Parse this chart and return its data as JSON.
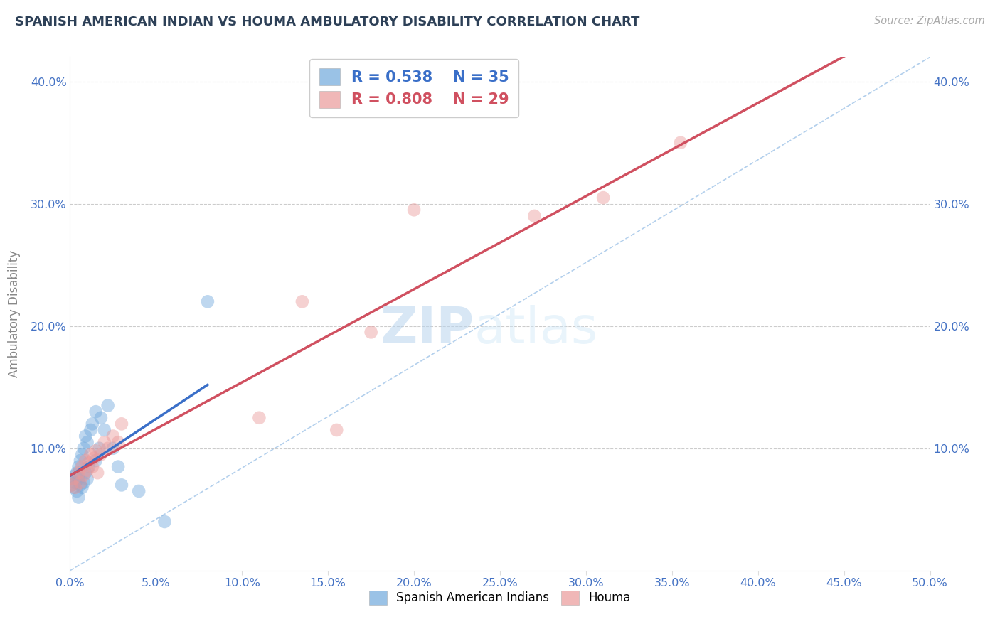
{
  "title": "SPANISH AMERICAN INDIAN VS HOUMA AMBULATORY DISABILITY CORRELATION CHART",
  "source": "Source: ZipAtlas.com",
  "ylabel": "Ambulatory Disability",
  "xlim": [
    0.0,
    0.5
  ],
  "ylim": [
    0.0,
    0.42
  ],
  "xtick_labels": [
    "0.0%",
    "5.0%",
    "10.0%",
    "15.0%",
    "20.0%",
    "25.0%",
    "30.0%",
    "35.0%",
    "40.0%",
    "45.0%",
    "50.0%"
  ],
  "xtick_vals": [
    0.0,
    0.05,
    0.1,
    0.15,
    0.2,
    0.25,
    0.3,
    0.35,
    0.4,
    0.45,
    0.5
  ],
  "ytick_labels": [
    "10.0%",
    "20.0%",
    "30.0%",
    "40.0%"
  ],
  "ytick_vals": [
    0.1,
    0.2,
    0.3,
    0.4
  ],
  "legend_r_blue": "R = 0.538",
  "legend_n_blue": "N = 35",
  "legend_r_pink": "R = 0.808",
  "legend_n_pink": "N = 29",
  "legend_label_blue": "Spanish American Indians",
  "legend_label_pink": "Houma",
  "color_blue": "#6fa8dc",
  "color_pink": "#ea9999",
  "color_blue_line": "#3a6fc8",
  "color_pink_line": "#d05060",
  "color_diag": "#a0c4e8",
  "watermark_zip": "ZIP",
  "watermark_atlas": "atlas",
  "blue_scatter_x": [
    0.0,
    0.001,
    0.002,
    0.003,
    0.003,
    0.004,
    0.004,
    0.005,
    0.005,
    0.005,
    0.006,
    0.006,
    0.007,
    0.007,
    0.008,
    0.008,
    0.009,
    0.009,
    0.01,
    0.01,
    0.011,
    0.012,
    0.013,
    0.015,
    0.015,
    0.017,
    0.018,
    0.02,
    0.022,
    0.025,
    0.028,
    0.03,
    0.04,
    0.055,
    0.08
  ],
  "blue_scatter_y": [
    0.075,
    0.07,
    0.068,
    0.072,
    0.078,
    0.065,
    0.08,
    0.06,
    0.075,
    0.085,
    0.07,
    0.09,
    0.068,
    0.095,
    0.072,
    0.1,
    0.08,
    0.11,
    0.075,
    0.105,
    0.085,
    0.115,
    0.12,
    0.09,
    0.13,
    0.1,
    0.125,
    0.115,
    0.135,
    0.1,
    0.085,
    0.07,
    0.065,
    0.04,
    0.22
  ],
  "pink_scatter_x": [
    0.001,
    0.002,
    0.003,
    0.005,
    0.006,
    0.007,
    0.008,
    0.009,
    0.01,
    0.011,
    0.012,
    0.013,
    0.014,
    0.015,
    0.016,
    0.018,
    0.02,
    0.022,
    0.025,
    0.028,
    0.03,
    0.11,
    0.135,
    0.155,
    0.175,
    0.2,
    0.27,
    0.31,
    0.355
  ],
  "pink_scatter_y": [
    0.07,
    0.075,
    0.068,
    0.08,
    0.072,
    0.085,
    0.078,
    0.09,
    0.082,
    0.088,
    0.095,
    0.085,
    0.092,
    0.098,
    0.08,
    0.095,
    0.105,
    0.1,
    0.11,
    0.105,
    0.12,
    0.125,
    0.22,
    0.115,
    0.195,
    0.295,
    0.29,
    0.305,
    0.35
  ],
  "background_color": "#ffffff",
  "grid_color": "#cccccc",
  "title_color": "#2d4057",
  "axis_label_color": "#888888",
  "tick_color": "#4472c4"
}
